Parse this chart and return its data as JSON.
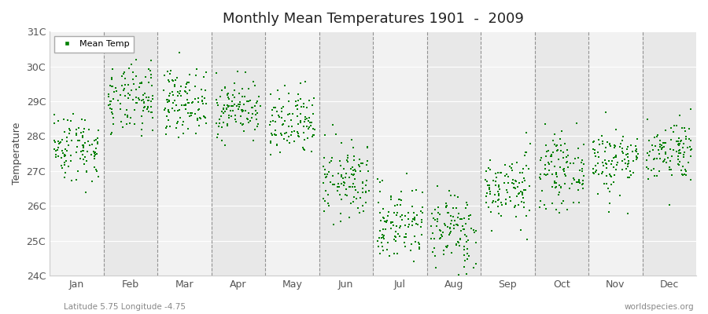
{
  "title": "Monthly Mean Temperatures 1901  -  2009",
  "ylabel": "Temperature",
  "subtitle": "Latitude 5.75 Longitude -4.75",
  "watermark": "worldspecies.org",
  "legend_label": "Mean Temp",
  "dot_color": "#008000",
  "bg_color": "#f2f2f2",
  "stripe_colors": [
    "#f2f2f2",
    "#e8e8e8"
  ],
  "ylim": [
    24,
    31
  ],
  "yticks": [
    24,
    25,
    26,
    27,
    28,
    29,
    30,
    31
  ],
  "ytick_labels": [
    "24C",
    "25C",
    "26C",
    "27C",
    "28C",
    "29C",
    "30C",
    "31C"
  ],
  "months": [
    "Jan",
    "Feb",
    "Mar",
    "Apr",
    "May",
    "Jun",
    "Jul",
    "Aug",
    "Sep",
    "Oct",
    "Nov",
    "Dec"
  ],
  "month_means": [
    27.7,
    29.0,
    29.0,
    28.8,
    28.3,
    26.7,
    25.5,
    25.3,
    26.5,
    27.0,
    27.3,
    27.6
  ],
  "month_stds": [
    0.5,
    0.5,
    0.45,
    0.4,
    0.5,
    0.55,
    0.55,
    0.55,
    0.5,
    0.5,
    0.5,
    0.45
  ],
  "n_years": 109,
  "seed": 42,
  "dot_size": 3
}
